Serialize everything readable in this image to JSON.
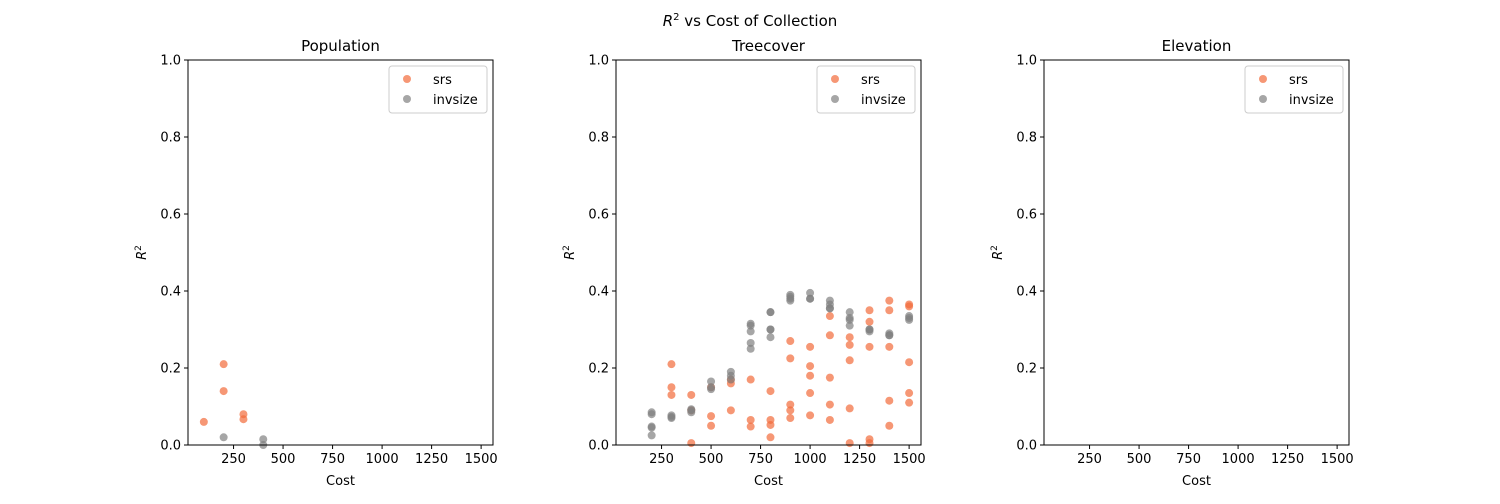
{
  "figure": {
    "suptitle_italic": "R",
    "suptitle_sup": "2",
    "suptitle_rest": " vs Cost of Collection"
  },
  "colors": {
    "srs": "#f26b3a",
    "invsize": "#808080"
  },
  "chart_data": [
    {
      "type": "scatter",
      "title": "Population",
      "xlabel": "Cost",
      "ylabel": "R2",
      "xlim": [
        20,
        1560
      ],
      "ylim": [
        0,
        1.0
      ],
      "xticks": [
        250,
        500,
        750,
        1000,
        1250,
        1500
      ],
      "xtick_labels": [
        "250",
        "500",
        "750",
        "1000",
        "1250",
        "1500"
      ],
      "yticks": [
        0.0,
        0.2,
        0.4,
        0.6,
        0.8,
        1.0
      ],
      "ytick_labels": [
        "0.0",
        "0.2",
        "0.4",
        "0.6",
        "0.8",
        "1.0"
      ],
      "legend": {
        "position": "top-right",
        "entries": [
          "srs",
          "invsize"
        ]
      },
      "series": [
        {
          "name": "srs",
          "color": "#f26b3a",
          "points": [
            [
              100,
              0.06
            ],
            [
              200,
              0.21
            ],
            [
              200,
              0.14
            ],
            [
              300,
              0.08
            ],
            [
              300,
              0.067
            ]
          ]
        },
        {
          "name": "invsize",
          "color": "#808080",
          "points": [
            [
              200,
              0.02
            ],
            [
              400,
              0.015
            ],
            [
              400,
              0.0
            ]
          ]
        }
      ]
    },
    {
      "type": "scatter",
      "title": "Treecover",
      "xlabel": "Cost",
      "ylabel": "R2",
      "xlim": [
        20,
        1560
      ],
      "ylim": [
        0,
        1.0
      ],
      "xticks": [
        250,
        500,
        750,
        1000,
        1250,
        1500
      ],
      "xtick_labels": [
        "250",
        "500",
        "750",
        "1000",
        "1250",
        "1500"
      ],
      "yticks": [
        0.0,
        0.2,
        0.4,
        0.6,
        0.8,
        1.0
      ],
      "ytick_labels": [
        "0.0",
        "0.2",
        "0.4",
        "0.6",
        "0.8",
        "1.0"
      ],
      "legend": {
        "position": "top-right",
        "entries": [
          "srs",
          "invsize"
        ]
      },
      "series": [
        {
          "name": "srs",
          "color": "#f26b3a",
          "points": [
            [
              300,
              0.21
            ],
            [
              300,
              0.15
            ],
            [
              300,
              0.13
            ],
            [
              400,
              0.13
            ],
            [
              400,
              0.09
            ],
            [
              400,
              0.005
            ],
            [
              500,
              0.15
            ],
            [
              500,
              0.075
            ],
            [
              500,
              0.05
            ],
            [
              600,
              0.17
            ],
            [
              600,
              0.16
            ],
            [
              600,
              0.09
            ],
            [
              700,
              0.17
            ],
            [
              700,
              0.065
            ],
            [
              700,
              0.048
            ],
            [
              800,
              0.14
            ],
            [
              800,
              0.065
            ],
            [
              800,
              0.052
            ],
            [
              800,
              0.02
            ],
            [
              900,
              0.27
            ],
            [
              900,
              0.225
            ],
            [
              900,
              0.105
            ],
            [
              900,
              0.09
            ],
            [
              900,
              0.07
            ],
            [
              1000,
              0.255
            ],
            [
              1000,
              0.205
            ],
            [
              1000,
              0.18
            ],
            [
              1000,
              0.135
            ],
            [
              1000,
              0.077
            ],
            [
              1100,
              0.335
            ],
            [
              1100,
              0.285
            ],
            [
              1100,
              0.175
            ],
            [
              1100,
              0.105
            ],
            [
              1100,
              0.065
            ],
            [
              1200,
              0.28
            ],
            [
              1200,
              0.26
            ],
            [
              1200,
              0.22
            ],
            [
              1200,
              0.095
            ],
            [
              1200,
              0.005
            ],
            [
              1300,
              0.35
            ],
            [
              1300,
              0.32
            ],
            [
              1300,
              0.255
            ],
            [
              1300,
              0.015
            ],
            [
              1300,
              0.005
            ],
            [
              1400,
              0.375
            ],
            [
              1400,
              0.35
            ],
            [
              1400,
              0.255
            ],
            [
              1400,
              0.115
            ],
            [
              1400,
              0.05
            ],
            [
              1500,
              0.365
            ],
            [
              1500,
              0.36
            ],
            [
              1500,
              0.215
            ],
            [
              1500,
              0.135
            ],
            [
              1500,
              0.11
            ]
          ]
        },
        {
          "name": "invsize",
          "color": "#808080",
          "points": [
            [
              200,
              0.085
            ],
            [
              200,
              0.08
            ],
            [
              200,
              0.048
            ],
            [
              200,
              0.045
            ],
            [
              200,
              0.025
            ],
            [
              300,
              0.077
            ],
            [
              300,
              0.073
            ],
            [
              300,
              0.07
            ],
            [
              400,
              0.093
            ],
            [
              400,
              0.09
            ],
            [
              400,
              0.085
            ],
            [
              500,
              0.165
            ],
            [
              500,
              0.15
            ],
            [
              500,
              0.145
            ],
            [
              600,
              0.19
            ],
            [
              600,
              0.18
            ],
            [
              600,
              0.17
            ],
            [
              700,
              0.315
            ],
            [
              700,
              0.31
            ],
            [
              700,
              0.295
            ],
            [
              700,
              0.265
            ],
            [
              700,
              0.25
            ],
            [
              800,
              0.345
            ],
            [
              800,
              0.345
            ],
            [
              800,
              0.3
            ],
            [
              800,
              0.3
            ],
            [
              800,
              0.28
            ],
            [
              900,
              0.39
            ],
            [
              900,
              0.385
            ],
            [
              900,
              0.38
            ],
            [
              900,
              0.375
            ],
            [
              1000,
              0.395
            ],
            [
              1000,
              0.38
            ],
            [
              1000,
              0.38
            ],
            [
              1100,
              0.375
            ],
            [
              1100,
              0.365
            ],
            [
              1100,
              0.355
            ],
            [
              1100,
              0.355
            ],
            [
              1200,
              0.345
            ],
            [
              1200,
              0.33
            ],
            [
              1200,
              0.325
            ],
            [
              1200,
              0.31
            ],
            [
              1300,
              0.3
            ],
            [
              1300,
              0.3
            ],
            [
              1300,
              0.295
            ],
            [
              1400,
              0.29
            ],
            [
              1400,
              0.285
            ],
            [
              1400,
              0.285
            ],
            [
              1500,
              0.335
            ],
            [
              1500,
              0.33
            ],
            [
              1500,
              0.325
            ]
          ]
        }
      ]
    },
    {
      "type": "scatter",
      "title": "Elevation",
      "xlabel": "Cost",
      "ylabel": "R2",
      "xlim": [
        20,
        1560
      ],
      "ylim": [
        0,
        1.0
      ],
      "xticks": [
        250,
        500,
        750,
        1000,
        1250,
        1500
      ],
      "xtick_labels": [
        "250",
        "500",
        "750",
        "1000",
        "1250",
        "1500"
      ],
      "yticks": [
        0.0,
        0.2,
        0.4,
        0.6,
        0.8,
        1.0
      ],
      "ytick_labels": [
        "0.0",
        "0.2",
        "0.4",
        "0.6",
        "0.8",
        "1.0"
      ],
      "legend": {
        "position": "top-right",
        "entries": [
          "srs",
          "invsize"
        ]
      },
      "series": [
        {
          "name": "srs",
          "color": "#f26b3a",
          "points": []
        },
        {
          "name": "invsize",
          "color": "#808080",
          "points": []
        }
      ]
    }
  ]
}
